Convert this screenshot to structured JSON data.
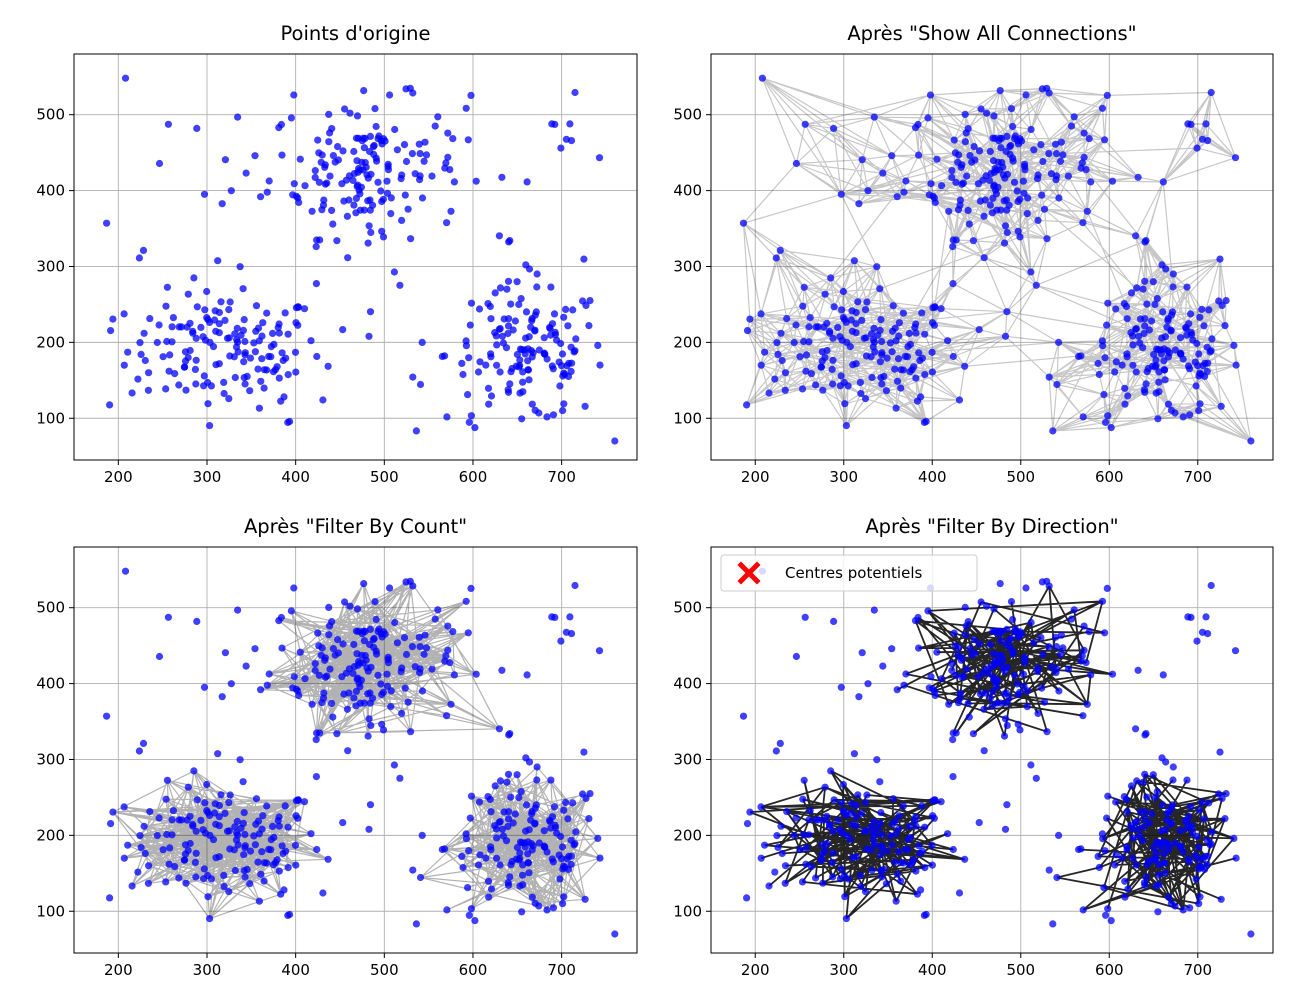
{
  "figure": {
    "colors": {
      "points": "#0000ff",
      "edges": "#000000",
      "centers": "#ff0000",
      "grid": "#b0b0b0"
    }
  },
  "chart_data": [
    {
      "type": "scatter",
      "title": "Points d'origine",
      "xlim": [
        150,
        785
      ],
      "ylim": [
        45,
        580
      ],
      "xticks": [
        200,
        300,
        400,
        500,
        600,
        700
      ],
      "yticks": [
        100,
        200,
        300,
        400,
        500
      ],
      "grid": true,
      "edges": "none",
      "clusters_estimated": [
        {
          "name": "",
          "center": [
            320,
            190
          ],
          "spread": [
            55,
            38
          ],
          "count": 140
        },
        {
          "name": "",
          "center": [
            480,
            430
          ],
          "spread": [
            55,
            45
          ],
          "count": 150
        },
        {
          "name": "",
          "center": [
            660,
            185
          ],
          "spread": [
            45,
            45
          ],
          "count": 140
        }
      ],
      "background_points_estimated": 70
    },
    {
      "type": "scatter",
      "title": "Après \"Show All Connections\"",
      "xlim": [
        150,
        785
      ],
      "ylim": [
        45,
        580
      ],
      "xticks": [
        200,
        300,
        400,
        500,
        600,
        700
      ],
      "yticks": [
        100,
        200,
        300,
        400,
        500
      ],
      "grid": true,
      "edges": "all"
    },
    {
      "type": "scatter",
      "title": "Après \"Filter By Count\"",
      "xlim": [
        150,
        785
      ],
      "ylim": [
        45,
        580
      ],
      "xticks": [
        200,
        300,
        400,
        500,
        600,
        700
      ],
      "yticks": [
        100,
        200,
        300,
        400,
        500
      ],
      "grid": true,
      "edges": "within-cluster"
    },
    {
      "type": "scatter",
      "title": "Après \"Filter By Direction\"",
      "xlim": [
        150,
        785
      ],
      "ylim": [
        45,
        580
      ],
      "xticks": [
        200,
        300,
        400,
        500,
        600,
        700
      ],
      "yticks": [
        100,
        200,
        300,
        400,
        500
      ],
      "grid": true,
      "edges": "directional",
      "legend": {
        "label": "Centres potentiels",
        "placement": "top-left",
        "marker": "X"
      }
    }
  ]
}
